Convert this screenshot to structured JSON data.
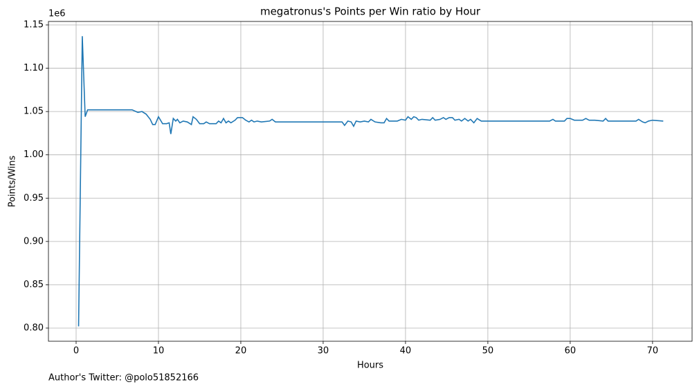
{
  "chart_data": {
    "type": "line",
    "title": "megatronus's Points per Win ratio by Hour",
    "xlabel": "Hours",
    "ylabel": "Points/Wins",
    "y_offset_label": "1e6",
    "annotation": "Author's Twitter: @polo51852166",
    "grid": true,
    "xlim": [
      -3.36,
      74.8
    ],
    "ylim": [
      0.7848,
      1.154
    ],
    "xticks": [
      0,
      10,
      20,
      30,
      40,
      50,
      60,
      70
    ],
    "yticks": [
      {
        "value": 0.8,
        "label": "0.80"
      },
      0.85,
      {
        "value": 0.9,
        "label": "0.90"
      },
      0.95,
      {
        "value": 1.0,
        "label": "1.00"
      },
      1.05,
      {
        "value": 1.1,
        "label": "1.10"
      },
      1.15
    ],
    "x": [
      0.3,
      0.75,
      1.1,
      1.4,
      6.8,
      7.5,
      8,
      8.5,
      9,
      9.3,
      9.6,
      10,
      10.5,
      11,
      11.3,
      11.5,
      11.8,
      12.1,
      12.3,
      12.6,
      13,
      13.5,
      14,
      14.2,
      14.6,
      15,
      15.5,
      15.8,
      16.2,
      17,
      17.3,
      17.6,
      17.9,
      18.2,
      18.5,
      18.8,
      19.3,
      19.6,
      20.2,
      20.6,
      21,
      21.3,
      21.6,
      22,
      22.5,
      23.5,
      23.8,
      24.2,
      32.3,
      32.6,
      33,
      33.4,
      33.7,
      34,
      34.5,
      35,
      35.5,
      35.8,
      36.3,
      37,
      37.4,
      37.7,
      38,
      38.5,
      39,
      39.5,
      40,
      40.3,
      40.7,
      41,
      41.3,
      41.6,
      42,
      43,
      43.3,
      43.6,
      44.2,
      44.6,
      44.9,
      45.3,
      45.7,
      46,
      46.5,
      46.8,
      47.2,
      47.6,
      47.9,
      48.3,
      48.7,
      49.2,
      57.5,
      57.9,
      58.2,
      59.3,
      59.6,
      60,
      60.5,
      61,
      61.5,
      61.9,
      62.3,
      63,
      64,
      64.3,
      64.6,
      68,
      68.3,
      68.8,
      69.1,
      69.5,
      70,
      71.3
    ],
    "series": [
      {
        "name": "Points/Wins",
        "color": "#1f77b4",
        "values": [
          0.802,
          1.137,
          1.044,
          1.052,
          1.052,
          1.049,
          1.05,
          1.047,
          1.041,
          1.035,
          1.035,
          1.044,
          1.036,
          1.036,
          1.037,
          1.024,
          1.042,
          1.039,
          1.041,
          1.037,
          1.039,
          1.038,
          1.035,
          1.044,
          1.041,
          1.036,
          1.036,
          1.038,
          1.036,
          1.036,
          1.039,
          1.037,
          1.042,
          1.037,
          1.039,
          1.037,
          1.04,
          1.043,
          1.043,
          1.04,
          1.038,
          1.04,
          1.038,
          1.039,
          1.038,
          1.039,
          1.041,
          1.038,
          1.038,
          1.034,
          1.039,
          1.038,
          1.033,
          1.039,
          1.038,
          1.039,
          1.038,
          1.041,
          1.038,
          1.037,
          1.037,
          1.042,
          1.039,
          1.039,
          1.039,
          1.041,
          1.04,
          1.044,
          1.041,
          1.044,
          1.043,
          1.04,
          1.041,
          1.04,
          1.043,
          1.04,
          1.041,
          1.043,
          1.041,
          1.043,
          1.043,
          1.04,
          1.041,
          1.039,
          1.042,
          1.039,
          1.041,
          1.037,
          1.042,
          1.039,
          1.039,
          1.041,
          1.039,
          1.039,
          1.042,
          1.042,
          1.04,
          1.04,
          1.04,
          1.042,
          1.04,
          1.04,
          1.039,
          1.042,
          1.039,
          1.039,
          1.041,
          1.038,
          1.037,
          1.039,
          1.04,
          1.039
        ]
      }
    ]
  }
}
